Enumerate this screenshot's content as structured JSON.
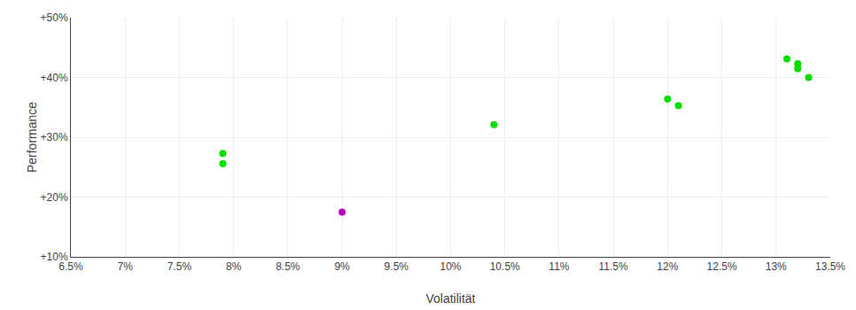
{
  "chart_data": {
    "type": "scatter",
    "xlabel": "Volatilität",
    "ylabel": "Performance",
    "xlim": [
      0.065,
      0.135
    ],
    "ylim": [
      0.1,
      0.5
    ],
    "xticks": [
      {
        "value": 0.065,
        "label": "6.5%"
      },
      {
        "value": 0.07,
        "label": "7%"
      },
      {
        "value": 0.075,
        "label": "7.5%"
      },
      {
        "value": 0.08,
        "label": "8%"
      },
      {
        "value": 0.085,
        "label": "8.5%"
      },
      {
        "value": 0.09,
        "label": "9%"
      },
      {
        "value": 0.095,
        "label": "9.5%"
      },
      {
        "value": 0.1,
        "label": "10%"
      },
      {
        "value": 0.105,
        "label": "10.5%"
      },
      {
        "value": 0.11,
        "label": "11%"
      },
      {
        "value": 0.115,
        "label": "11.5%"
      },
      {
        "value": 0.12,
        "label": "12%"
      },
      {
        "value": 0.125,
        "label": "12.5%"
      },
      {
        "value": 0.13,
        "label": "13%"
      },
      {
        "value": 0.135,
        "label": "13.5%"
      }
    ],
    "yticks": [
      {
        "value": 0.1,
        "label": "+10%"
      },
      {
        "value": 0.2,
        "label": "+20%"
      },
      {
        "value": 0.3,
        "label": "+30%"
      },
      {
        "value": 0.4,
        "label": "+40%"
      },
      {
        "value": 0.5,
        "label": "+50%"
      }
    ],
    "grid": true,
    "series": [
      {
        "color": "#00dd00",
        "x": [
          0.079,
          0.079,
          0.104,
          0.12,
          0.121,
          0.131,
          0.132,
          0.132,
          0.133
        ],
        "values": [
          0.273,
          0.256,
          0.321,
          0.364,
          0.353,
          0.431,
          0.423,
          0.415,
          0.4
        ]
      },
      {
        "color": "#bb00bb",
        "x": [
          0.09
        ],
        "values": [
          0.175
        ]
      }
    ]
  }
}
